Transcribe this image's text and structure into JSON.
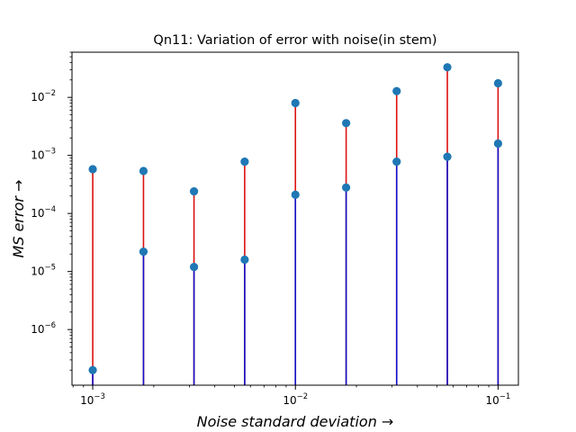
{
  "chart_data": {
    "type": "stem",
    "title": "Qn11: Variation of error with noise(in stem)",
    "xlabel": "Noise standard deviation →",
    "ylabel": "MS error →",
    "xscale": "log",
    "yscale": "log",
    "xlim": [
      0.00079,
      0.126
    ],
    "ylim": [
      1.1e-07,
      0.06
    ],
    "x_ticks": [
      {
        "base": "10",
        "exp": "−3",
        "value": 0.001
      },
      {
        "base": "10",
        "exp": "−2",
        "value": 0.01
      },
      {
        "base": "10",
        "exp": "−1",
        "value": 0.1
      }
    ],
    "y_ticks": [
      {
        "base": "10",
        "exp": "−6",
        "value": 1e-06
      },
      {
        "base": "10",
        "exp": "−5",
        "value": 1e-05
      },
      {
        "base": "10",
        "exp": "−4",
        "value": 0.0001
      },
      {
        "base": "10",
        "exp": "−3",
        "value": 0.001
      },
      {
        "base": "10",
        "exp": "−2",
        "value": 0.01
      }
    ],
    "x": [
      0.001,
      0.00178,
      0.00316,
      0.00562,
      0.01,
      0.0178,
      0.0316,
      0.0562,
      0.1
    ],
    "series": [
      {
        "color": "#dd1111",
        "values": [
          0.00058,
          0.00054,
          0.00024,
          0.00078,
          0.008,
          0.0036,
          0.0128,
          0.033,
          0.0175
        ]
      },
      {
        "color": "#1111cc",
        "values": [
          2e-07,
          2.2e-05,
          1.2e-05,
          1.6e-05,
          0.00021,
          0.00028,
          0.00078,
          0.00095,
          0.0016
        ]
      }
    ],
    "marker_color": "#1f77b4",
    "grid": false,
    "legend": "none"
  }
}
